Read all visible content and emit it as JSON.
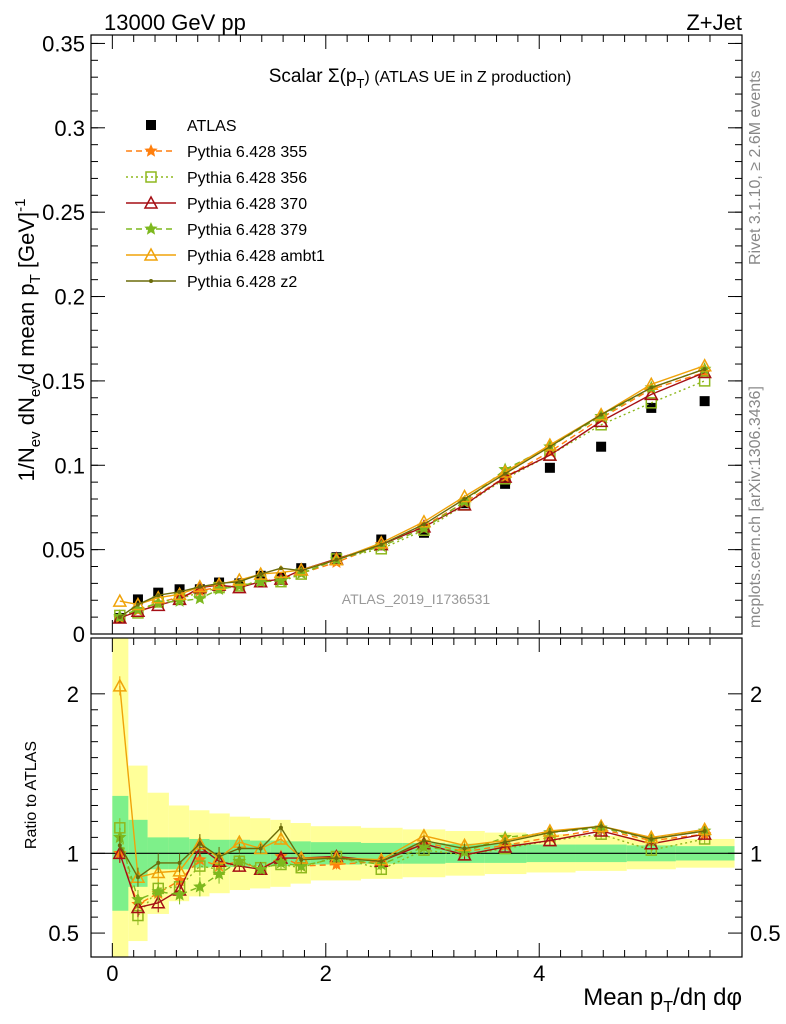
{
  "header": {
    "left": "13000 GeV pp",
    "right": "Z+Jet"
  },
  "side_labels": {
    "rivet": "Rivet 3.1.10, ≥ 2.6M events",
    "mcplots": "mcplots.cern.ch [arXiv:1306.3436]"
  },
  "watermark": "ATLAS_2019_I1736531",
  "chart_data": [
    {
      "type": "scatter",
      "panel": "main",
      "title": "Scalar Σ(p_T) (ATLAS UE in Z production)",
      "title_main": "Scalar Σ(p",
      "title_sub": "T",
      "title_end": ") (ATLAS UE in Z production)",
      "ylabel": "1/N_ev dN_ev/d mean p_T [GeV]^-1",
      "xlim": [
        -0.2,
        5.9
      ],
      "ylim": [
        0,
        0.355
      ],
      "yticks": [
        0,
        0.05,
        0.1,
        0.15,
        0.2,
        0.25,
        0.3,
        0.35
      ],
      "ytick_labels": [
        "0",
        "0.05",
        "0.1",
        "0.15",
        "0.2",
        "0.25",
        "0.3",
        "0.35"
      ],
      "x": [
        0.07,
        0.24,
        0.43,
        0.63,
        0.82,
        1.0,
        1.19,
        1.39,
        1.58,
        1.77,
        2.1,
        2.52,
        2.92,
        3.3,
        3.68,
        4.1,
        4.58,
        5.05,
        5.55
      ],
      "legend_position": "top-left",
      "series": [
        {
          "name": "ATLAS",
          "color": "#000000",
          "marker": "square",
          "line": "none",
          "values": [
            0.0095,
            0.0205,
            0.0245,
            0.0265,
            0.0265,
            0.0305,
            0.03,
            0.0345,
            0.0335,
            0.039,
            0.0455,
            0.056,
            0.06,
            0.0775,
            0.089,
            0.0985,
            0.111,
            0.134,
            0.138
          ]
        },
        {
          "name": "Pythia 6.428 355",
          "color": "#ff7f0e",
          "marker": "star",
          "line": "dashed",
          "values": [
            0.0095,
            0.014,
            0.0185,
            0.022,
            0.0255,
            0.028,
            0.0285,
            0.031,
            0.033,
            0.036,
            0.0425,
            0.053,
            0.064,
            0.078,
            0.093,
            0.108,
            0.128,
            0.145,
            0.155
          ]
        },
        {
          "name": "Pythia 6.428 356",
          "color": "#8fb81e",
          "marker": "open-square",
          "line": "dotted",
          "values": [
            0.011,
            0.0125,
            0.019,
            0.021,
            0.0245,
            0.0275,
            0.0285,
            0.0315,
            0.031,
            0.0355,
            0.0445,
            0.0505,
            0.0615,
            0.0765,
            0.092,
            0.106,
            0.124,
            0.137,
            0.15
          ]
        },
        {
          "name": "Pythia 6.428 370",
          "color": "#a50f15",
          "marker": "open-triangle",
          "line": "solid",
          "values": [
            0.0095,
            0.0135,
            0.017,
            0.0205,
            0.0275,
            0.029,
            0.0275,
            0.031,
            0.0325,
            0.038,
            0.0445,
            0.053,
            0.0635,
            0.0765,
            0.093,
            0.106,
            0.126,
            0.142,
            0.155
          ]
        },
        {
          "name": "Pythia 6.428 379",
          "color": "#7db81e",
          "marker": "star",
          "line": "dashed",
          "values": [
            0.0105,
            0.0145,
            0.0185,
            0.0195,
            0.021,
            0.0265,
            0.0285,
            0.031,
            0.0315,
            0.036,
            0.044,
            0.052,
            0.0625,
            0.0785,
            0.0975,
            0.111,
            0.129,
            0.146,
            0.157
          ]
        },
        {
          "name": "Pythia 6.428 ambt1",
          "color": "#f0a30a",
          "marker": "open-triangle",
          "line": "solid",
          "values": [
            0.0195,
            0.0175,
            0.0215,
            0.0235,
            0.028,
            0.0295,
            0.032,
            0.0355,
            0.0365,
            0.038,
            0.044,
            0.054,
            0.0665,
            0.0815,
            0.096,
            0.112,
            0.13,
            0.148,
            0.159
          ]
        },
        {
          "name": "Pythia 6.428 z2",
          "color": "#6b6b0a",
          "marker": "dot",
          "line": "solid",
          "values": [
            0.01,
            0.0175,
            0.023,
            0.025,
            0.028,
            0.03,
            0.031,
            0.0355,
            0.039,
            0.0375,
            0.044,
            0.053,
            0.065,
            0.08,
            0.095,
            0.111,
            0.13,
            0.146,
            0.157
          ]
        }
      ]
    },
    {
      "type": "line",
      "panel": "ratio",
      "xlabel": "Mean p_T/dη dφ",
      "ylabel": "Ratio to ATLAS",
      "xlim": [
        -0.2,
        5.9
      ],
      "ylim": [
        0.35,
        2.35
      ],
      "yticks": [
        0.5,
        1,
        2
      ],
      "ytick_labels": [
        "0.5",
        "1",
        "2"
      ],
      "xticks": [
        0,
        2,
        4
      ],
      "xtick_labels": [
        "0",
        "2",
        "4"
      ],
      "bin_edges": [
        0.0,
        0.15,
        0.33,
        0.53,
        0.72,
        0.91,
        1.1,
        1.29,
        1.48,
        1.67,
        1.86,
        2.33,
        2.72,
        3.12,
        3.49,
        3.88,
        4.34,
        4.82,
        5.28,
        5.83
      ],
      "band_inner": [
        0.36,
        0.21,
        0.1,
        0.1,
        0.09,
        0.085,
        0.085,
        0.08,
        0.08,
        0.075,
        0.07,
        0.065,
        0.065,
        0.06,
        0.06,
        0.055,
        0.055,
        0.05,
        0.045
      ],
      "band_outer": [
        1.75,
        0.55,
        0.38,
        0.3,
        0.27,
        0.25,
        0.23,
        0.22,
        0.21,
        0.19,
        0.17,
        0.16,
        0.15,
        0.14,
        0.13,
        0.12,
        0.11,
        0.1,
        0.09
      ],
      "band_colors": {
        "inner": "#7ef08a",
        "outer": "#ffff99"
      },
      "series": [
        {
          "name": "Pythia 6.428 355",
          "color": "#ff7f0e",
          "values": [
            1.0,
            0.68,
            0.75,
            0.83,
            0.96,
            0.92,
            0.95,
            0.9,
            0.98,
            0.92,
            0.93,
            0.95,
            1.07,
            1.01,
            1.05,
            1.1,
            1.15,
            1.08,
            1.12
          ]
        },
        {
          "name": "Pythia 6.428 356",
          "color": "#8fb81e",
          "values": [
            1.16,
            0.61,
            0.78,
            0.79,
            0.92,
            0.9,
            0.95,
            0.91,
            0.93,
            0.91,
            0.98,
            0.9,
            1.02,
            0.99,
            1.03,
            1.08,
            1.12,
            1.02,
            1.09
          ]
        },
        {
          "name": "Pythia 6.428 370",
          "color": "#a50f15",
          "values": [
            1.0,
            0.66,
            0.69,
            0.77,
            1.04,
            0.95,
            0.92,
            0.9,
            0.97,
            0.97,
            0.98,
            0.95,
            1.06,
            0.99,
            1.04,
            1.08,
            1.14,
            1.06,
            1.12
          ]
        },
        {
          "name": "Pythia 6.428 379",
          "color": "#7db81e",
          "values": [
            1.1,
            0.71,
            0.76,
            0.74,
            0.79,
            0.87,
            0.95,
            0.9,
            0.94,
            0.92,
            0.97,
            0.93,
            1.04,
            1.01,
            1.1,
            1.13,
            1.16,
            1.09,
            1.14
          ]
        },
        {
          "name": "Pythia 6.428 ambt1",
          "color": "#f0a30a",
          "values": [
            2.05,
            0.85,
            0.88,
            0.89,
            1.06,
            0.97,
            1.07,
            1.03,
            1.09,
            0.97,
            0.97,
            0.96,
            1.11,
            1.05,
            1.08,
            1.14,
            1.17,
            1.1,
            1.15
          ]
        },
        {
          "name": "Pythia 6.428 z2",
          "color": "#6b6b0a",
          "values": [
            1.05,
            0.85,
            0.94,
            0.94,
            1.06,
            0.98,
            1.03,
            1.03,
            1.16,
            0.96,
            0.97,
            0.95,
            1.08,
            1.03,
            1.07,
            1.13,
            1.17,
            1.09,
            1.14
          ]
        }
      ]
    }
  ]
}
